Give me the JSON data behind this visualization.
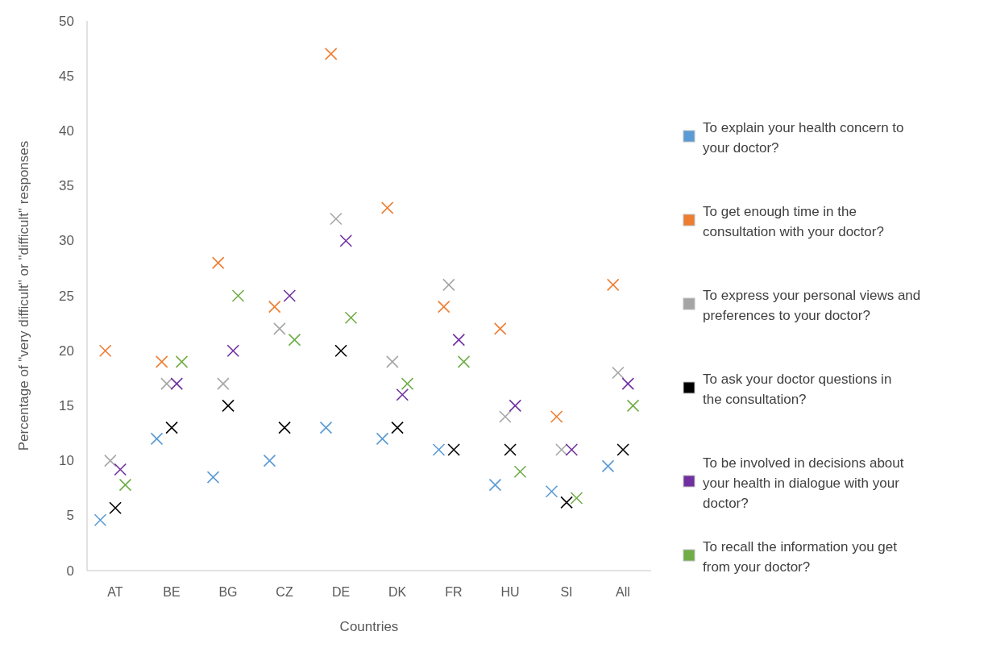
{
  "chart_data": {
    "type": "scatter",
    "xlabel": "Countries",
    "ylabel": "Percentage of \"very difficult\" or \"difficult\" responses",
    "categories": [
      "AT",
      "BE",
      "BG",
      "CZ",
      "DE",
      "DK",
      "FR",
      "HU",
      "SI",
      "All"
    ],
    "ylim": [
      0,
      50
    ],
    "yticks": [
      0,
      5,
      10,
      15,
      20,
      25,
      30,
      35,
      40,
      45,
      50
    ],
    "grid": false,
    "legend": "right",
    "marker": "cross",
    "series": [
      {
        "name": "To explain your health concern to your doctor?",
        "color": "#5b9bd5",
        "values": [
          4.6,
          12,
          8.5,
          10,
          13,
          12,
          11,
          7.8,
          7.2,
          9.5
        ]
      },
      {
        "name": "To get enough time in the consultation with your doctor?",
        "color": "#ed7d31",
        "values": [
          20,
          19,
          28,
          24,
          47,
          33,
          24,
          22,
          14,
          26
        ]
      },
      {
        "name": "To express your personal views and preferences to your doctor?",
        "color": "#a5a5a5",
        "values": [
          10,
          17,
          17,
          22,
          32,
          19,
          26,
          14,
          11,
          18
        ]
      },
      {
        "name": "To ask your doctor questions in the consultation?",
        "color": "#000000",
        "values": [
          5.7,
          13,
          15,
          13,
          20,
          13,
          11,
          11,
          6.2,
          11
        ]
      },
      {
        "name": "To be involved in decisions about your health in dialogue with your doctor?",
        "color": "#7030a0",
        "values": [
          9.2,
          17,
          20,
          25,
          30,
          16,
          21,
          15,
          11,
          17
        ]
      },
      {
        "name": "To recall the information you get from your doctor?",
        "color": "#70ad47",
        "values": [
          7.8,
          19,
          25,
          21,
          23,
          17,
          19,
          9,
          6.6,
          15
        ]
      }
    ]
  }
}
